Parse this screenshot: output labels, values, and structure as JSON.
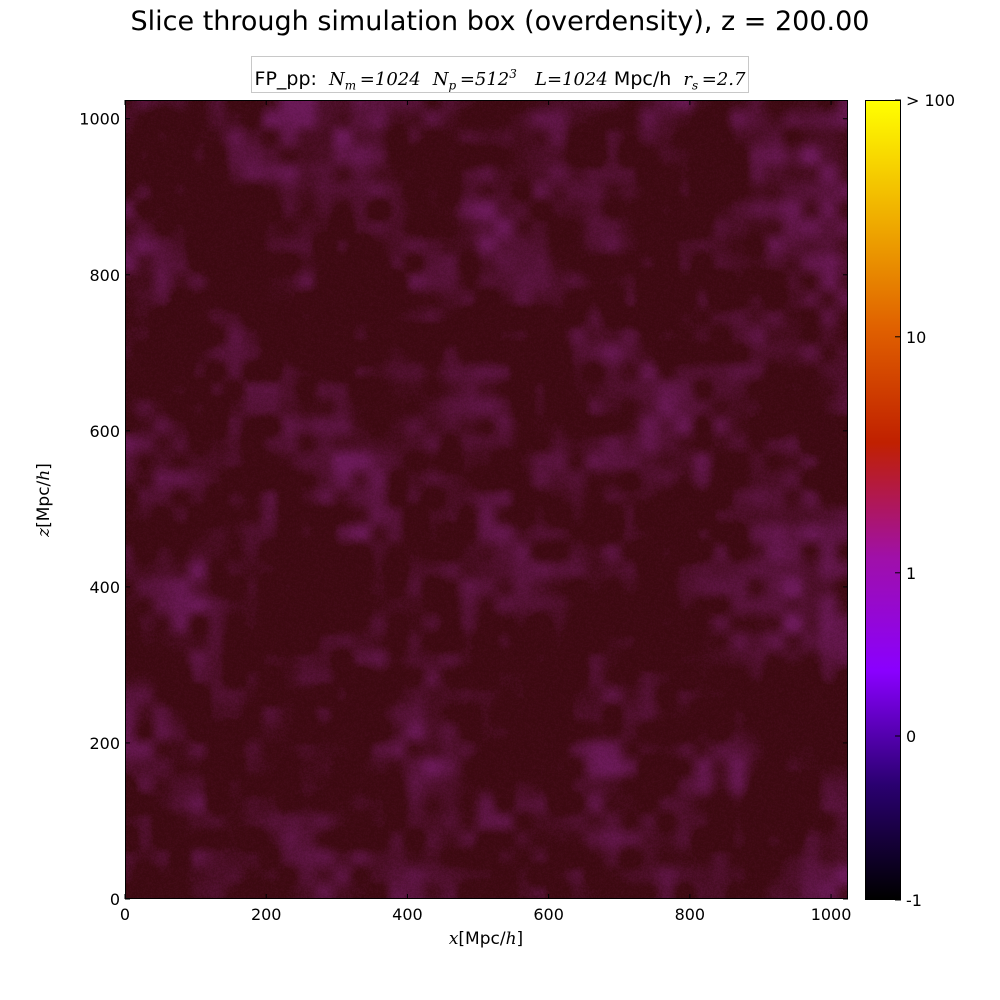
{
  "chart_data": {
    "type": "heatmap",
    "title": "Slice through simulation box (overdensity), z = 200.00",
    "info": {
      "prefix": "FP_pp:",
      "Nm_symbol": "N",
      "Nm_sub": "m",
      "Nm_value": "=1024",
      "Np_symbol": "N",
      "Np_sub": "p",
      "Np_value": "=512",
      "Np_exp": "3",
      "L_symbol": "L",
      "L_value": "=1024",
      "L_unit": "Mpc/h",
      "rs_symbol": "r",
      "rs_sub": "s",
      "rs_value": "=2.7"
    },
    "xlabel": {
      "var": "x",
      "unit": "[Mpc/",
      "unit_h": "h",
      "close": "]"
    },
    "ylabel": {
      "var": "z",
      "unit": "[Mpc/",
      "unit_h": "h",
      "close": "]"
    },
    "xlim": [
      0,
      1024
    ],
    "ylim": [
      0,
      1024
    ],
    "x_ticks": [
      0,
      200,
      400,
      600,
      800,
      1000
    ],
    "y_ticks": [
      0,
      200,
      400,
      600,
      800,
      1000
    ],
    "colorbar": {
      "ticks": [
        {
          "label": "-1",
          "frac": 0.0
        },
        {
          "label": "0",
          "frac": 0.205
        },
        {
          "label": "1",
          "frac": 0.409
        },
        {
          "label": "10",
          "frac": 0.704
        },
        {
          "label": "> 100",
          "frac": 1.0
        }
      ],
      "colors": [
        "#000000",
        "#2a0070",
        "#8a00ff",
        "#a010a8",
        "#c02000",
        "#e06000",
        "#f0b000",
        "#ffff00"
      ]
    },
    "field_description_colors": {
      "base": "#3f0a12",
      "overdense": "#6b1a56"
    },
    "grid": false
  }
}
